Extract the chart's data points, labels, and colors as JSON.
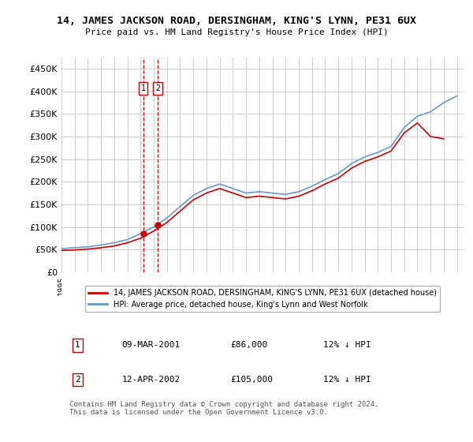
{
  "title": "14, JAMES JACKSON ROAD, DERSINGHAM, KING'S LYNN, PE31 6UX",
  "subtitle": "Price paid vs. HM Land Registry's House Price Index (HPI)",
  "ylabel_ticks": [
    "£0",
    "£50K",
    "£100K",
    "£150K",
    "£200K",
    "£250K",
    "£300K",
    "£350K",
    "£400K",
    "£450K"
  ],
  "ytick_values": [
    0,
    50000,
    100000,
    150000,
    200000,
    250000,
    300000,
    350000,
    400000,
    450000
  ],
  "ylim": [
    0,
    475000
  ],
  "xlim_start": 1995.0,
  "xlim_end": 2025.5,
  "hpi_color": "#6699cc",
  "price_color": "#cc0000",
  "dashed_color": "#cc0000",
  "legend_label_price": "14, JAMES JACKSON ROAD, DERSINGHAM, KING'S LYNN, PE31 6UX (detached house)",
  "legend_label_hpi": "HPI: Average price, detached house, King's Lynn and West Norfolk",
  "transaction1_x": 2001.19,
  "transaction1_y": 86000,
  "transaction1_label": "1",
  "transaction2_x": 2002.29,
  "transaction2_y": 105000,
  "transaction2_label": "2",
  "table_rows": [
    [
      "1",
      "09-MAR-2001",
      "£86,000",
      "12% ↓ HPI"
    ],
    [
      "2",
      "12-APR-2002",
      "£105,000",
      "12% ↓ HPI"
    ]
  ],
  "footnote": "Contains HM Land Registry data © Crown copyright and database right 2024.\nThis data is licensed under the Open Government Licence v3.0.",
  "background_color": "#ffffff",
  "grid_color": "#cccccc",
  "hpi_years": [
    1995,
    1996,
    1997,
    1998,
    1999,
    2000,
    2001,
    2002,
    2003,
    2004,
    2005,
    2006,
    2007,
    2008,
    2009,
    2010,
    2011,
    2012,
    2013,
    2014,
    2015,
    2016,
    2017,
    2018,
    2019,
    2020,
    2021,
    2022,
    2023,
    2024,
    2025
  ],
  "hpi_values": [
    52000,
    54000,
    56000,
    60000,
    65000,
    72000,
    85000,
    100000,
    120000,
    145000,
    170000,
    185000,
    195000,
    185000,
    175000,
    178000,
    175000,
    172000,
    178000,
    190000,
    205000,
    218000,
    240000,
    255000,
    265000,
    278000,
    320000,
    345000,
    355000,
    375000,
    390000
  ],
  "price_years": [
    1995,
    1996,
    1997,
    1998,
    1999,
    2000,
    2001,
    2002,
    2003,
    2004,
    2005,
    2006,
    2007,
    2008,
    2009,
    2010,
    2011,
    2012,
    2013,
    2014,
    2015,
    2016,
    2017,
    2018,
    2019,
    2020,
    2021,
    2022,
    2023,
    2024
  ],
  "price_values": [
    48000,
    49000,
    51000,
    54000,
    58000,
    65000,
    75000,
    91000,
    110000,
    135000,
    160000,
    175000,
    185000,
    175000,
    165000,
    168000,
    165000,
    162000,
    168000,
    180000,
    195000,
    208000,
    230000,
    245000,
    255000,
    268000,
    308000,
    330000,
    300000,
    295000
  ]
}
